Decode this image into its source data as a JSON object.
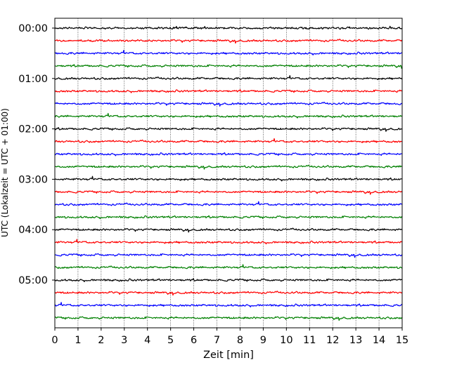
{
  "chart_data": {
    "type": "line",
    "title": "",
    "xlabel": "Zeit  [min]",
    "ylabel": "UTC (Lokalzeit = UTC + 01:00)",
    "xlim": [
      0,
      15
    ],
    "x_ticks": [
      "0",
      "1",
      "2",
      "3",
      "4",
      "5",
      "6",
      "7",
      "8",
      "9",
      "10",
      "11",
      "12",
      "13",
      "14",
      "15"
    ],
    "y_tick_labels": [
      "00:00",
      "01:00",
      "02:00",
      "03:00",
      "04:00",
      "05:00"
    ],
    "traces_per_hour": 4,
    "trace_count": 24,
    "trace_interval_minutes": 15,
    "trace_colors": [
      "#000000",
      "#ff0000",
      "#0000ff",
      "#008000"
    ],
    "grid": {
      "vertical": true,
      "horizontal": false
    },
    "legend": "none"
  }
}
